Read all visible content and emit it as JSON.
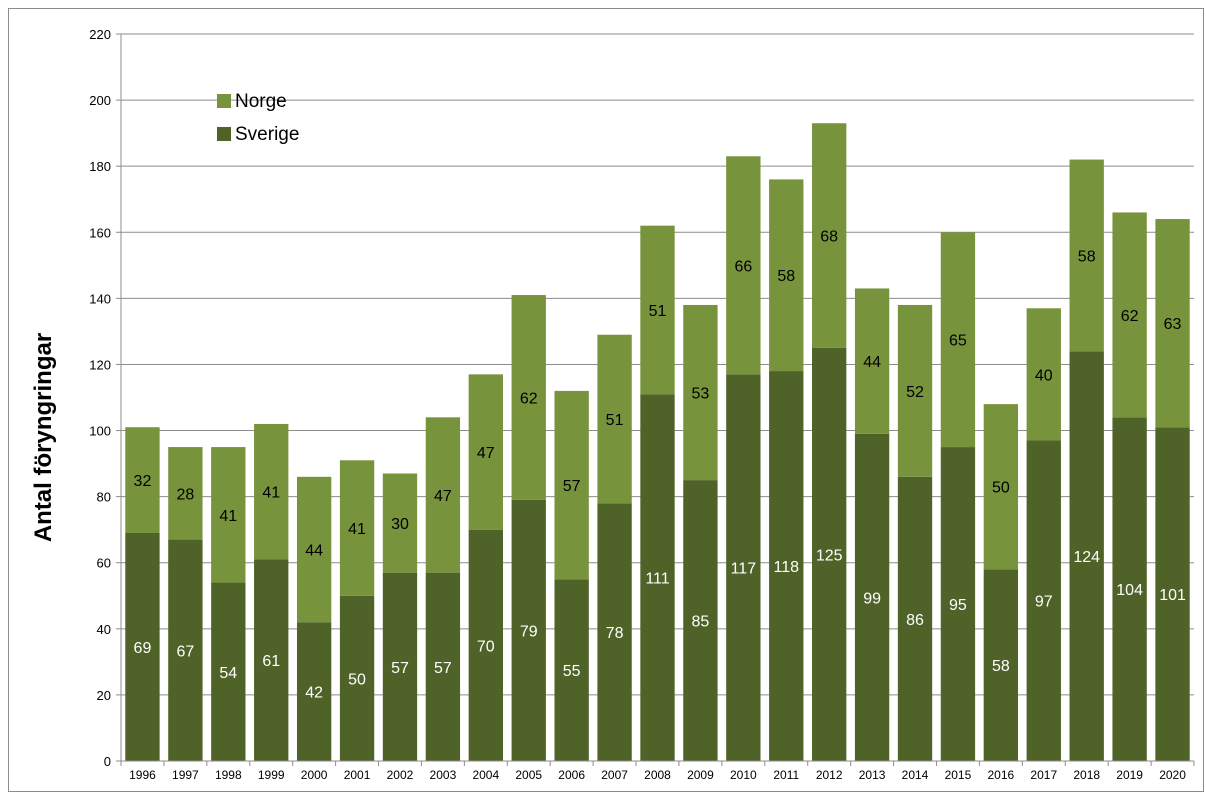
{
  "chart_data": {
    "type": "bar",
    "stacked": true,
    "ylabel": "Antal föryngringar",
    "xlabel": "",
    "ylim": [
      0,
      220
    ],
    "yticks": [
      0,
      20,
      40,
      60,
      80,
      100,
      120,
      140,
      160,
      180,
      200,
      220
    ],
    "grid": true,
    "legend_position": "top-left",
    "categories": [
      "1996",
      "1997",
      "1998",
      "1999",
      "2000",
      "2001",
      "2002",
      "2003",
      "2004",
      "2005",
      "2006",
      "2007",
      "2008",
      "2009",
      "2010",
      "2011",
      "2012",
      "2013",
      "2014",
      "2015",
      "2016",
      "2017",
      "2018",
      "2019",
      "2020"
    ],
    "series": [
      {
        "name": "Sverige",
        "color": "#4f6228",
        "values": [
          69,
          67,
          54,
          61,
          42,
          50,
          57,
          57,
          70,
          79,
          55,
          78,
          111,
          85,
          117,
          118,
          125,
          99,
          86,
          95,
          58,
          97,
          124,
          104,
          101
        ]
      },
      {
        "name": "Norge",
        "color": "#77933c",
        "values": [
          32,
          28,
          41,
          41,
          44,
          41,
          30,
          47,
          47,
          62,
          57,
          51,
          51,
          53,
          66,
          58,
          68,
          44,
          52,
          65,
          50,
          40,
          58,
          62,
          63
        ]
      }
    ]
  }
}
